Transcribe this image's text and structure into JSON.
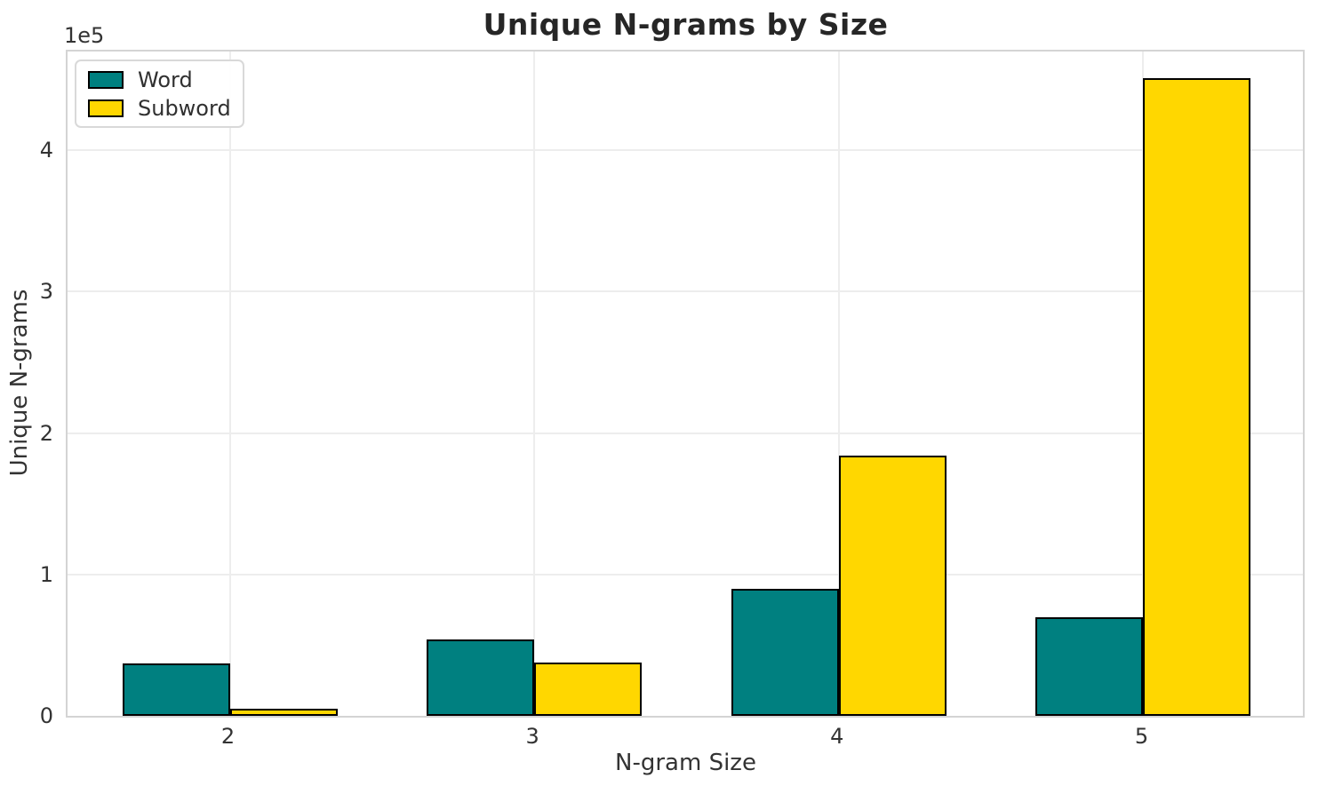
{
  "chart_data": {
    "type": "bar",
    "title": "Unique N-grams by Size",
    "xlabel": "N-gram Size",
    "ylabel": "Unique N-grams",
    "y_offset_label": "1e5",
    "categories": [
      "2",
      "3",
      "4",
      "5"
    ],
    "series": [
      {
        "name": "Word",
        "color": "#008080",
        "values": [
          37000,
          54000,
          90000,
          70000
        ]
      },
      {
        "name": "Subword",
        "color": "#FFD700",
        "values": [
          5000,
          38000,
          184000,
          451000
        ]
      }
    ],
    "ylim": [
      0,
      471000
    ],
    "yticks": [
      0,
      100000,
      200000,
      300000,
      400000
    ],
    "ytick_labels": [
      "0",
      "1",
      "2",
      "3",
      "4"
    ],
    "grid": true,
    "legend_position": "upper-left",
    "bar_edge_color": "#000000",
    "grid_color": "#ededed",
    "spine_color": "#d4d4d4",
    "text_color": "#333333"
  }
}
